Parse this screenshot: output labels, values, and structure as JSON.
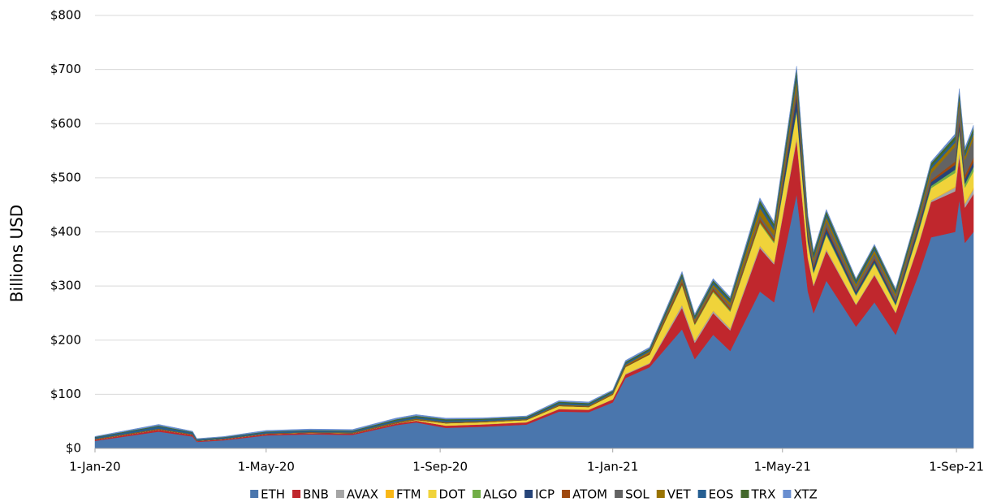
{
  "chart_data": {
    "type": "stacked_area",
    "y_label": "Billions USD",
    "x": [
      "2020-01-01",
      "2020-02-15",
      "2020-03-10",
      "2020-03-13",
      "2020-04-01",
      "2020-05-01",
      "2020-06-01",
      "2020-07-01",
      "2020-08-01",
      "2020-08-15",
      "2020-09-05",
      "2020-10-01",
      "2020-11-01",
      "2020-11-24",
      "2020-12-15",
      "2021-01-01",
      "2021-01-10",
      "2021-01-27",
      "2021-02-19",
      "2021-02-28",
      "2021-03-13",
      "2021-03-25",
      "2021-04-15",
      "2021-04-25",
      "2021-05-11",
      "2021-05-19",
      "2021-05-23",
      "2021-06-01",
      "2021-06-22",
      "2021-07-05",
      "2021-07-20",
      "2021-08-05",
      "2021-08-14",
      "2021-08-31",
      "2021-09-03",
      "2021-09-07",
      "2021-09-13"
    ],
    "series": [
      {
        "name": "ETH",
        "color": "#4a76ad",
        "values": [
          14,
          31,
          22,
          12,
          15,
          24,
          26,
          25,
          43,
          48,
          38,
          40,
          44,
          68,
          67,
          85,
          130,
          150,
          220,
          165,
          210,
          180,
          290,
          270,
          470,
          290,
          250,
          310,
          225,
          270,
          210,
          320,
          390,
          400,
          460,
          380,
          400
        ]
      },
      {
        "name": "BNB",
        "color": "#c0272d",
        "values": [
          2.1,
          3.7,
          3,
          1.7,
          2,
          2.5,
          2.7,
          2.5,
          3.2,
          3.4,
          4,
          4.3,
          4.1,
          4.5,
          4.3,
          5.5,
          6.5,
          6.5,
          40,
          30,
          40,
          38,
          80,
          70,
          100,
          60,
          50,
          55,
          40,
          50,
          40,
          55,
          65,
          75,
          80,
          65,
          70
        ]
      },
      {
        "name": "AVAX",
        "color": "#a5a5a5",
        "values": [
          0,
          0,
          0,
          0,
          0,
          0,
          0,
          0,
          0,
          0,
          0.3,
          0.4,
          0.4,
          0.6,
          0.5,
          0.5,
          1.5,
          1.5,
          5,
          4,
          4,
          3.5,
          4,
          3,
          5,
          3,
          2.5,
          3,
          1.5,
          2,
          1.5,
          2.5,
          3,
          7,
          8,
          7,
          9
        ]
      },
      {
        "name": "FTM",
        "color": "#f9b716",
        "values": [
          0.05,
          0.05,
          0.05,
          0.05,
          0.05,
          0.05,
          0.05,
          0.05,
          0.05,
          0.05,
          0.05,
          0.05,
          0.05,
          0.05,
          0.05,
          0.05,
          0.1,
          0.1,
          1,
          0.8,
          1.2,
          1,
          1.5,
          1.2,
          2,
          1.2,
          1,
          1.2,
          0.5,
          0.6,
          0.5,
          0.7,
          0.9,
          2,
          2.5,
          2,
          3
        ]
      },
      {
        "name": "DOT",
        "color": "#f0d33a",
        "values": [
          0,
          0,
          0,
          0,
          0,
          0,
          0,
          0,
          0,
          1,
          4,
          3.5,
          3.7,
          5,
          4.5,
          8,
          12,
          15,
          35,
          28,
          33,
          30,
          40,
          35,
          45,
          25,
          20,
          25,
          15,
          18,
          12,
          20,
          22,
          25,
          32,
          28,
          30
        ]
      },
      {
        "name": "ALGO",
        "color": "#71ad47",
        "values": [
          0.2,
          0.3,
          0.2,
          0.1,
          0.2,
          0.2,
          0.2,
          0.2,
          0.4,
          0.4,
          0.3,
          0.3,
          0.3,
          0.4,
          0.4,
          0.4,
          0.6,
          0.7,
          2.5,
          2,
          2.5,
          2.5,
          3,
          3,
          4,
          3,
          2.5,
          3,
          2,
          2.5,
          2.2,
          3,
          4,
          6,
          8,
          7,
          8
        ]
      },
      {
        "name": "ICP",
        "color": "#264478",
        "values": [
          0,
          0,
          0,
          0,
          0,
          0,
          0,
          0,
          0,
          0,
          0,
          0,
          0,
          0,
          0,
          0,
          0,
          0,
          0,
          0,
          0,
          0,
          0,
          0,
          25,
          10,
          8,
          9,
          5,
          6,
          5,
          7,
          7,
          9,
          10,
          9,
          9
        ]
      },
      {
        "name": "ATOM",
        "color": "#9e480e",
        "values": [
          0.8,
          0.9,
          0.6,
          0.4,
          0.5,
          0.6,
          0.7,
          0.8,
          1,
          1,
          1.1,
          1,
          0.9,
          1.2,
          1.1,
          1.3,
          1.8,
          2.5,
          5,
          4,
          4.5,
          4,
          6,
          5,
          6.5,
          4.5,
          4,
          4,
          2.5,
          3,
          2.5,
          3.5,
          4,
          6,
          7,
          7,
          8
        ]
      },
      {
        "name": "SOL",
        "color": "#636363",
        "values": [
          0,
          0,
          0,
          0,
          0,
          0.05,
          0.05,
          0.1,
          0.2,
          0.2,
          0.2,
          0.15,
          0.1,
          0.2,
          0.1,
          0.1,
          0.2,
          0.3,
          2.5,
          2,
          3.5,
          4.5,
          6,
          6,
          12,
          9,
          8,
          10,
          7,
          8,
          7,
          9,
          12,
          28,
          32,
          28,
          35
        ]
      },
      {
        "name": "VET",
        "color": "#997300",
        "values": [
          0.5,
          0.5,
          0.4,
          0.2,
          0.2,
          0.3,
          0.4,
          0.7,
          1,
          1,
          0.8,
          0.7,
          0.7,
          1,
          1,
          1.2,
          1.8,
          2.5,
          4,
          3,
          4,
          6,
          14,
          10,
          12,
          8,
          6,
          7,
          5,
          6,
          5,
          7,
          8,
          7,
          8,
          7,
          8
        ]
      },
      {
        "name": "EOS",
        "color": "#255e91",
        "values": [
          2.6,
          4.2,
          3,
          2,
          2.2,
          2.6,
          2.6,
          2.4,
          3,
          3.2,
          3,
          2.6,
          2.3,
          3.2,
          2.8,
          2.6,
          3,
          2.8,
          4.5,
          3.6,
          4,
          3.6,
          7,
          6,
          10,
          7,
          5,
          5.5,
          4,
          4.3,
          3.5,
          4.5,
          5,
          5,
          5.2,
          4.8,
          5
        ]
      },
      {
        "name": "TRX",
        "color": "#43682b",
        "values": [
          1,
          1.5,
          1.1,
          0.7,
          0.8,
          1,
          1.1,
          1.2,
          2,
          2,
          2.2,
          1.8,
          1.8,
          2.2,
          2.1,
          1.9,
          2.5,
          2.5,
          4.5,
          3.5,
          4,
          4,
          7,
          6,
          10,
          7,
          5.5,
          6,
          4.5,
          4.5,
          4,
          5.5,
          6,
          6.5,
          7,
          6.5,
          7
        ]
      },
      {
        "name": "XTZ",
        "color": "#698ed0",
        "values": [
          0.9,
          2.2,
          1.4,
          1,
          1,
          1.9,
          2,
          2,
          2.3,
          2.3,
          2,
          1.6,
          1.6,
          2,
          2,
          1.6,
          2.5,
          2.5,
          3,
          2.6,
          3.2,
          3,
          4.5,
          3.8,
          5,
          3,
          2.5,
          3,
          2,
          2.3,
          2,
          2.5,
          3,
          4.5,
          5,
          4.5,
          5
        ]
      }
    ],
    "xlim": [
      "2020-01-01",
      "2021-09-13"
    ],
    "xticks": [
      {
        "value": "2020-01-01",
        "label": "1-Jan-20"
      },
      {
        "value": "2020-05-01",
        "label": "1-May-20"
      },
      {
        "value": "2020-09-01",
        "label": "1-Sep-20"
      },
      {
        "value": "2021-01-01",
        "label": "1-Jan-21"
      },
      {
        "value": "2021-05-01",
        "label": "1-May-21"
      },
      {
        "value": "2021-09-01",
        "label": "1-Sep-21"
      }
    ],
    "ylim": [
      0,
      800
    ],
    "yticks": [
      {
        "value": 0,
        "label": "$0"
      },
      {
        "value": 100,
        "label": "$100"
      },
      {
        "value": 200,
        "label": "$200"
      },
      {
        "value": 300,
        "label": "$300"
      },
      {
        "value": 400,
        "label": "$400"
      },
      {
        "value": 500,
        "label": "$500"
      },
      {
        "value": 600,
        "label": "$600"
      },
      {
        "value": 700,
        "label": "$700"
      },
      {
        "value": 800,
        "label": "$800"
      }
    ],
    "grid": true,
    "legend": "bottom"
  }
}
